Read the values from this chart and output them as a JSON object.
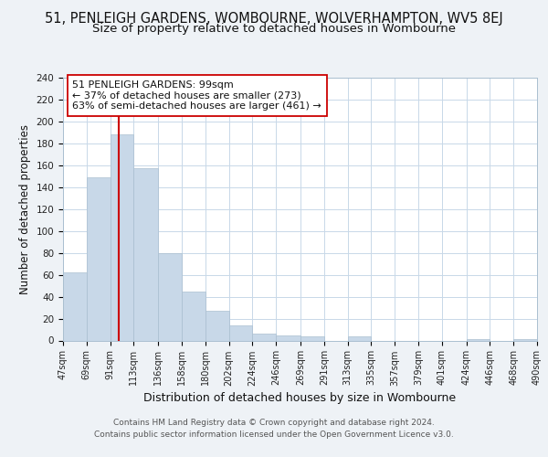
{
  "title": "51, PENLEIGH GARDENS, WOMBOURNE, WOLVERHAMPTON, WV5 8EJ",
  "subtitle": "Size of property relative to detached houses in Wombourne",
  "xlabel": "Distribution of detached houses by size in Wombourne",
  "ylabel": "Number of detached properties",
  "bar_color": "#c8d8e8",
  "bar_edge_color": "#aabfd0",
  "vline_x": 99,
  "vline_color": "#cc0000",
  "annotation_title": "51 PENLEIGH GARDENS: 99sqm",
  "annotation_line1": "← 37% of detached houses are smaller (273)",
  "annotation_line2": "63% of semi-detached houses are larger (461) →",
  "annotation_box_edge": "#cc0000",
  "footer1": "Contains HM Land Registry data © Crown copyright and database right 2024.",
  "footer2": "Contains public sector information licensed under the Open Government Licence v3.0.",
  "bins": [
    47,
    69,
    91,
    113,
    136,
    158,
    180,
    202,
    224,
    246,
    269,
    291,
    313,
    335,
    357,
    379,
    401,
    424,
    446,
    468,
    490
  ],
  "counts": [
    62,
    149,
    188,
    157,
    80,
    45,
    27,
    14,
    6,
    5,
    4,
    0,
    4,
    0,
    0,
    0,
    0,
    1,
    0,
    1
  ],
  "tick_labels": [
    "47sqm",
    "69sqm",
    "91sqm",
    "113sqm",
    "136sqm",
    "158sqm",
    "180sqm",
    "202sqm",
    "224sqm",
    "246sqm",
    "269sqm",
    "291sqm",
    "313sqm",
    "335sqm",
    "357sqm",
    "379sqm",
    "401sqm",
    "424sqm",
    "446sqm",
    "468sqm",
    "490sqm"
  ],
  "ylim": [
    0,
    240
  ],
  "yticks": [
    0,
    20,
    40,
    60,
    80,
    100,
    120,
    140,
    160,
    180,
    200,
    220,
    240
  ],
  "bg_color": "#eef2f6",
  "plot_bg_color": "#ffffff",
  "grid_color": "#c8d8e8",
  "title_fontsize": 10.5,
  "subtitle_fontsize": 9.5,
  "xlabel_fontsize": 9,
  "ylabel_fontsize": 8.5,
  "tick_fontsize": 7,
  "footer_fontsize": 6.5,
  "annotation_fontsize": 8
}
